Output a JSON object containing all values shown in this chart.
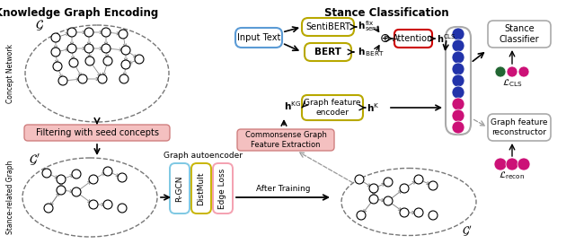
{
  "title_left": "Knowledge Graph Encoding",
  "title_right": "Stance Classification",
  "bg_color": "#ffffff",
  "concept_network_label": "Concept Network",
  "stance_graph_label": "Stance-related Graph",
  "filter_label": "Filtering with seed concepts",
  "graph_autoencoder_label": "Graph autoencoder",
  "input_text_label": "Input Text",
  "sentibert_label": "SentiBERT",
  "bert_label": "BERT",
  "attention_label": "Attention",
  "graph_feature_encoder_label": "Graph feature\nencoder",
  "commonsense_label": "Commonsense Graph\nFeature Extraction",
  "after_training_label": "After Training",
  "stance_classifier_label": "Stance\nClassifier",
  "graph_feature_reconstructor_label": "Graph feature\nreconstructor",
  "rgcn_label": "R-GCN",
  "distmult_label": "DistMult",
  "edge_loss_label": "Edge Loss",
  "color_input_text_box": "#5b9bd5",
  "color_sentibert_box": "#b8a800",
  "color_bert_box": "#b8a800",
  "color_attention_box": "#cc0000",
  "color_graph_feature_encoder_box": "#b8a800",
  "color_filter_box": "#f4c0c0",
  "color_commonsense_box": "#f4c0c0",
  "color_rgcn_box": "#7ec8e3",
  "color_distmult_box": "#c8b400",
  "color_edge_loss_box": "#f4a0b0",
  "color_stance_classifier_box": "#dddddd",
  "color_graph_reconstructor_box": "#dddddd",
  "color_dot_blue": "#2233aa",
  "color_dot_pink": "#cc1177",
  "color_dot_green": "#226633",
  "arrow_color": "#111111",
  "dashed_color": "#999999"
}
